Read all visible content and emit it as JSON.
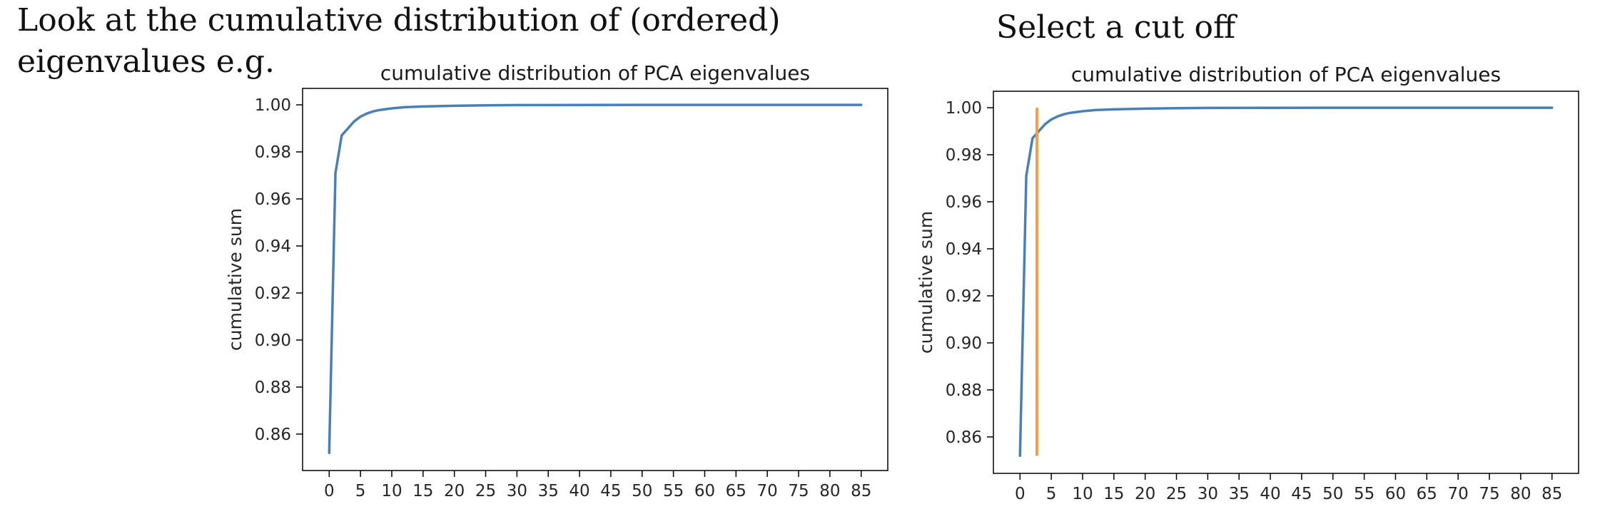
{
  "slide": {
    "left_caption_line1": "Look at the cumulative distribution of (ordered)",
    "left_caption_line2": "eigenvalues e.g.",
    "right_caption": "Select a cut off"
  },
  "chart_data": [
    {
      "type": "line",
      "title": "cumulative distribution of PCA eigenvalues",
      "xlabel": "",
      "ylabel": "cumulative sum",
      "xlim": [
        -4.25,
        89.25
      ],
      "ylim": [
        0.8445,
        1.007
      ],
      "xticks": [
        0,
        5,
        10,
        15,
        20,
        25,
        30,
        35,
        40,
        45,
        50,
        55,
        60,
        65,
        70,
        75,
        80,
        85
      ],
      "yticks": [
        0.86,
        0.88,
        0.9,
        0.92,
        0.94,
        0.96,
        0.98,
        1.0
      ],
      "ytick_labels": [
        "0.86",
        "0.88",
        "0.90",
        "0.92",
        "0.94",
        "0.96",
        "0.98",
        "1.00"
      ],
      "series": [
        {
          "color": "#4a7fb5",
          "x": [
            0,
            1,
            2,
            3,
            4,
            5,
            6,
            7,
            8,
            10,
            12,
            15,
            20,
            25,
            30,
            40,
            50,
            60,
            70,
            85
          ],
          "y": [
            0.852,
            0.971,
            0.987,
            0.99,
            0.993,
            0.995,
            0.9963,
            0.9972,
            0.9978,
            0.9985,
            0.999,
            0.9993,
            0.9996,
            0.9998,
            0.9999,
            0.99995,
            1.0,
            1.0,
            1.0,
            1.0
          ]
        }
      ]
    },
    {
      "type": "line",
      "title": "cumulative distribution of PCA eigenvalues",
      "xlabel": "",
      "ylabel": "cumulative sum",
      "xlim": [
        -4.25,
        89.25
      ],
      "ylim": [
        0.8445,
        1.007
      ],
      "xticks": [
        0,
        5,
        10,
        15,
        20,
        25,
        30,
        35,
        40,
        45,
        50,
        55,
        60,
        65,
        70,
        75,
        80,
        85
      ],
      "yticks": [
        0.86,
        0.88,
        0.9,
        0.92,
        0.94,
        0.96,
        0.98,
        1.0
      ],
      "ytick_labels": [
        "0.86",
        "0.88",
        "0.90",
        "0.92",
        "0.94",
        "0.96",
        "0.98",
        "1.00"
      ],
      "series": [
        {
          "color": "#4a7fb5",
          "x": [
            0,
            1,
            2,
            3,
            4,
            5,
            6,
            7,
            8,
            10,
            12,
            15,
            20,
            25,
            30,
            40,
            50,
            60,
            70,
            85
          ],
          "y": [
            0.852,
            0.971,
            0.987,
            0.99,
            0.993,
            0.995,
            0.9963,
            0.9972,
            0.9978,
            0.9985,
            0.999,
            0.9993,
            0.9996,
            0.9998,
            0.9999,
            0.99995,
            1.0,
            1.0,
            1.0,
            1.0
          ]
        }
      ],
      "vline": {
        "x": 2.7,
        "y0": 0.852,
        "y1": 1.0,
        "color": "#f0a04b"
      }
    }
  ]
}
